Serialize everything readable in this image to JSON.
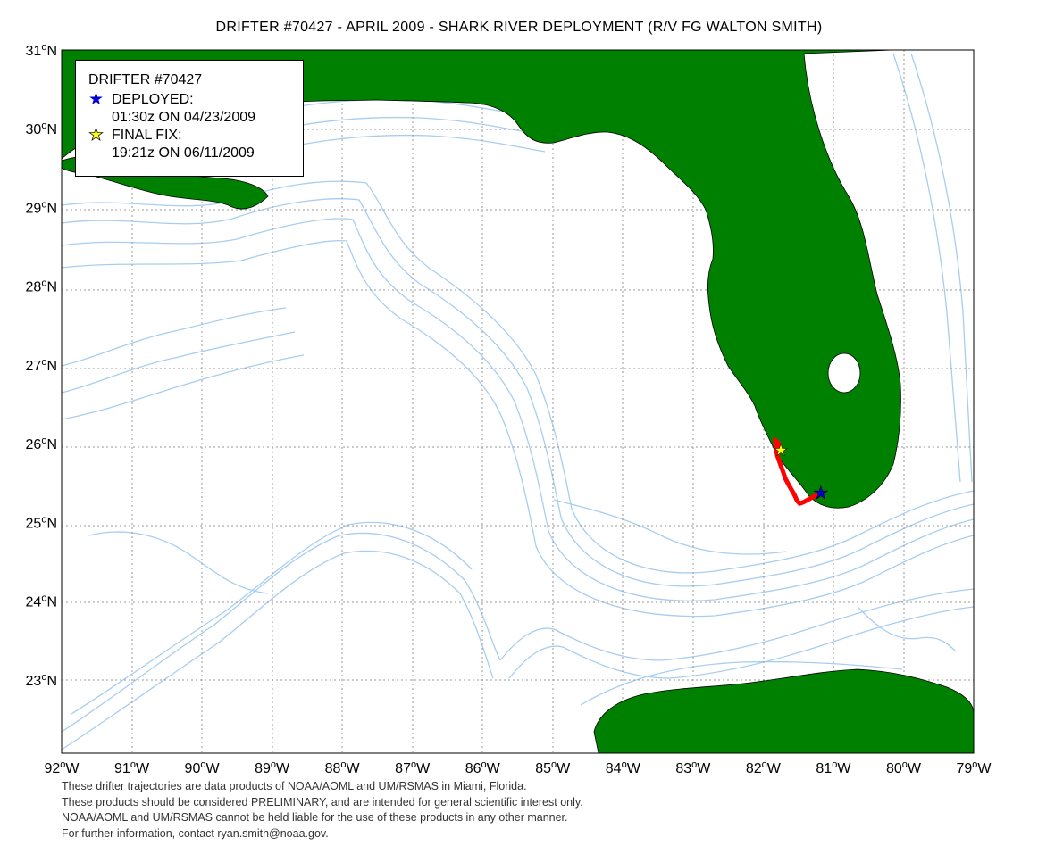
{
  "title": "DRIFTER #70427 - APRIL 2009 - SHARK RIVER DEPLOYMENT (R/V FG WALTON SMITH)",
  "legend": {
    "heading": "DRIFTER #70427",
    "deployed_label": "DEPLOYED:",
    "deployed_time": "01:30z ON 04/23/2009",
    "final_label": "FINAL FIX:",
    "final_time": "19:21z ON 06/11/2009"
  },
  "axes": {
    "lon_labels": [
      "92",
      "91",
      "90",
      "89",
      "88",
      "87",
      "86",
      "85",
      "84",
      "83",
      "82",
      "81",
      "80",
      "79"
    ],
    "lon_hemisphere": "W",
    "lat_labels": [
      "23",
      "24",
      "25",
      "26",
      "27",
      "28",
      "29",
      "30",
      "31"
    ],
    "lat_hemisphere": "N",
    "degree_symbol": "o"
  },
  "map_extent": {
    "lon_min": -92,
    "lon_max": -79,
    "lat_min": 22.07,
    "lat_max": 31
  },
  "markers": {
    "deployed": {
      "lon": -81.18,
      "lat": 25.37,
      "color": "#0000cc"
    },
    "final": {
      "lon": -81.75,
      "lat": 25.92,
      "color": "#ffff00"
    }
  },
  "track": {
    "color": "#ff0000",
    "points": [
      [
        -81.18,
        25.37
      ],
      [
        -81.3,
        25.32
      ],
      [
        -81.42,
        25.26
      ],
      [
        -81.48,
        25.24
      ],
      [
        -81.52,
        25.28
      ],
      [
        -81.56,
        25.36
      ],
      [
        -81.62,
        25.45
      ],
      [
        -81.68,
        25.55
      ],
      [
        -81.72,
        25.65
      ],
      [
        -81.76,
        25.75
      ],
      [
        -81.8,
        25.85
      ],
      [
        -81.82,
        25.95
      ],
      [
        -81.83,
        26.05
      ],
      [
        -81.78,
        26.0
      ],
      [
        -81.75,
        25.92
      ]
    ]
  },
  "colors": {
    "land": "#008000",
    "contour": "#a8cdf0",
    "grid": "#999999",
    "track": "#ff0000"
  },
  "footer": [
    "These drifter trajectories are data products of NOAA/AOML and UM/RSMAS in Miami, Florida.",
    "These products should be considered PRELIMINARY, and are intended for general scientific interest only.",
    "NOAA/AOML and UM/RSMAS cannot be held liable for the use of these products in any  other manner.",
    "For further information, contact ryan.smith@noaa.gov."
  ]
}
